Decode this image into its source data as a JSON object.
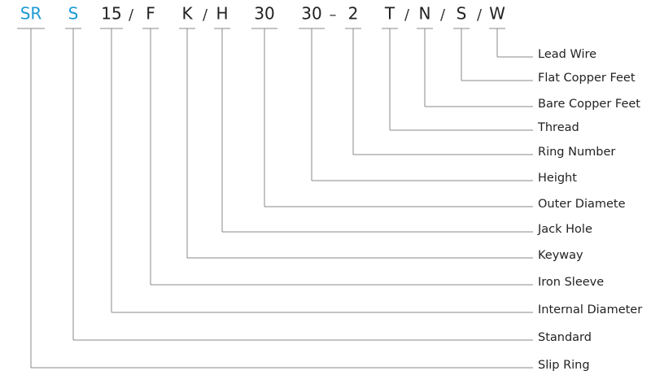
{
  "codes": [
    {
      "text": "SR",
      "label": "Slip Ring"
    },
    {
      "text": "S",
      "label": "Standard"
    },
    {
      "text": "15",
      "label": "Internal Diameter"
    },
    {
      "text": "F",
      "label": "Iron Sleeve"
    },
    {
      "text": "K",
      "label": "Keyway"
    },
    {
      "text": "H",
      "label": "Jack Hole"
    },
    {
      "text": "30",
      "label": "Outer Diamete"
    },
    {
      "text": "30",
      "label": "Height"
    },
    {
      "text": "2",
      "label": "Ring Number"
    },
    {
      "text": "T",
      "label": "Thread"
    },
    {
      "text": "N",
      "label": "Bare Copper Feet"
    },
    {
      "text": "S",
      "label": "Flat Copper Feet"
    },
    {
      "text": "W",
      "label": "Lead Wire"
    }
  ],
  "separators": [
    "/",
    "/",
    "–",
    "/",
    "/",
    "/"
  ]
}
